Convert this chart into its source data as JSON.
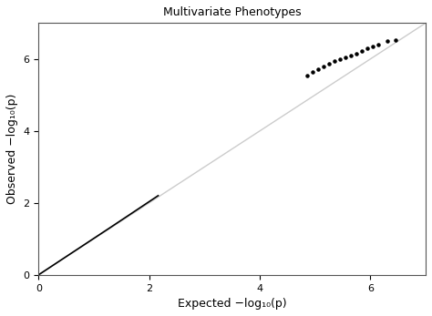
{
  "title": "Multivariate Phenotypes",
  "xlabel": "Expected −log₁₀(p)",
  "ylabel": "Observed −log₁₀(p)",
  "xlim": [
    0,
    7
  ],
  "ylim": [
    0,
    7
  ],
  "xticks": [
    0,
    2,
    4,
    6
  ],
  "yticks": [
    0,
    2,
    4,
    6
  ],
  "title_fontsize": 9,
  "axis_label_fontsize": 9,
  "tick_fontsize": 8,
  "ref_line_color": "#cccccc",
  "point_color": "#000000",
  "background_color": "#ffffff",
  "n_snps": 1000000,
  "deviation_start": 3.8,
  "scatter_expected": [
    4.85,
    4.95,
    5.05,
    5.15,
    5.25,
    5.35,
    5.45,
    5.55,
    5.65,
    5.75,
    5.85,
    5.95,
    6.05,
    6.15,
    6.3,
    6.45
  ],
  "scatter_observed": [
    5.55,
    5.65,
    5.72,
    5.8,
    5.88,
    5.95,
    6.0,
    6.05,
    6.1,
    6.15,
    6.22,
    6.3,
    6.35,
    6.4,
    6.5,
    6.52
  ]
}
